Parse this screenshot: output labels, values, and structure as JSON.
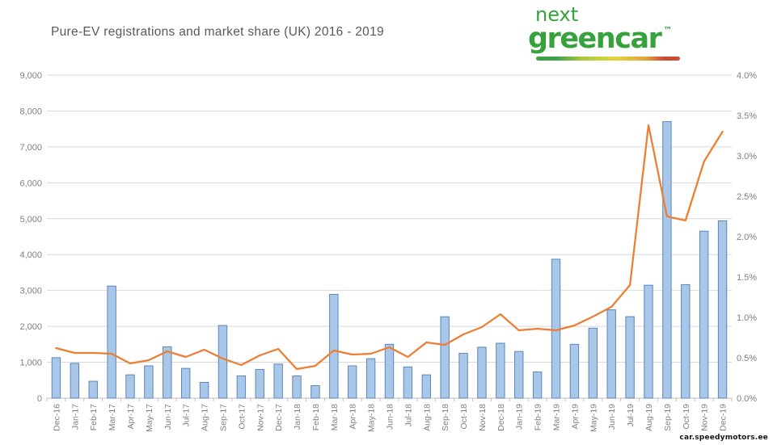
{
  "header": {
    "title": "Pure-EV registrations and market share (UK) 2016 - 2019",
    "logo": {
      "line1": "next",
      "line2": "greencar",
      "trademark": "™"
    }
  },
  "watermark": "car.speedymotors.ee",
  "colors": {
    "brand_green": "#35A23C",
    "logo_gradient": [
      "#3FA04A",
      "#A9C93E",
      "#E3D53E",
      "#E2A33C",
      "#CC4B38"
    ],
    "title_text": "#595959",
    "axis_text": "#808080",
    "grid": "#D9D9D9",
    "axis_line": "#BFBFBF",
    "background": "#FFFFFF"
  },
  "chart_data": {
    "type": "bar",
    "subtype": "bar+line combo, dual axis",
    "title": "Pure-EV registrations and market share (UK) 2016 - 2019",
    "xlabel": "",
    "ylabel_left": "",
    "ylabel_right": "",
    "grid": true,
    "legend_position": "none",
    "categories": [
      "Dec-16",
      "Jan-17",
      "Feb-17",
      "Mar-17",
      "Apr-17",
      "May-17",
      "Jun-17",
      "Jul-17",
      "Aug-17",
      "Sep-17",
      "Oct-17",
      "Nov-17",
      "Dec-17",
      "Jan-18",
      "Feb-18",
      "Mar-18",
      "Apr-18",
      "May-18",
      "Jun-18",
      "Jul-18",
      "Aug-18",
      "Sep-18",
      "Oct-18",
      "Nov-18",
      "Dec-18",
      "Jan-19",
      "Feb-19",
      "Mar-19",
      "Apr-19",
      "May-19",
      "Jun-19",
      "Jul-19",
      "Aug-19",
      "Sep-19",
      "Oct-19",
      "Nov-19",
      "Dec-19"
    ],
    "series": [
      {
        "name": "Pure-EV registrations",
        "type": "bar",
        "axis": "left",
        "color": "#A9C7E8",
        "border_color": "#5E86B8",
        "values": [
          1128,
          970,
          470,
          3122,
          650,
          900,
          1430,
          830,
          440,
          2025,
          620,
          800,
          950,
          620,
          350,
          2892,
          900,
          1100,
          1500,
          870,
          650,
          2269,
          1250,
          1420,
          1530,
          1300,
          730,
          3871,
          1500,
          1951,
          2461,
          2271,
          3147,
          7704,
          3162,
          4652,
          4940
        ]
      },
      {
        "name": "Market share",
        "type": "line",
        "axis": "right",
        "color": "#ED7D31",
        "values": [
          0.62,
          0.56,
          0.56,
          0.55,
          0.43,
          0.47,
          0.58,
          0.51,
          0.6,
          0.49,
          0.41,
          0.53,
          0.61,
          0.36,
          0.4,
          0.59,
          0.54,
          0.55,
          0.63,
          0.51,
          0.69,
          0.66,
          0.79,
          0.88,
          1.04,
          0.84,
          0.86,
          0.84,
          0.9,
          1.01,
          1.13,
          1.4,
          3.38,
          2.25,
          2.2,
          2.93,
          3.3
        ]
      }
    ],
    "left_axis": {
      "min": 0,
      "max": 9000,
      "step": 1000,
      "tick_labels": [
        "0",
        "1,000",
        "2,000",
        "3,000",
        "4,000",
        "5,000",
        "6,000",
        "7,000",
        "8,000",
        "9,000"
      ]
    },
    "right_axis": {
      "min": 0,
      "max": 4,
      "step": 0.5,
      "tick_labels": [
        "0.0%",
        "0.5%",
        "1.0%",
        "1.5%",
        "2.0%",
        "2.5%",
        "3.0%",
        "3.5%",
        "4.0%"
      ]
    }
  }
}
